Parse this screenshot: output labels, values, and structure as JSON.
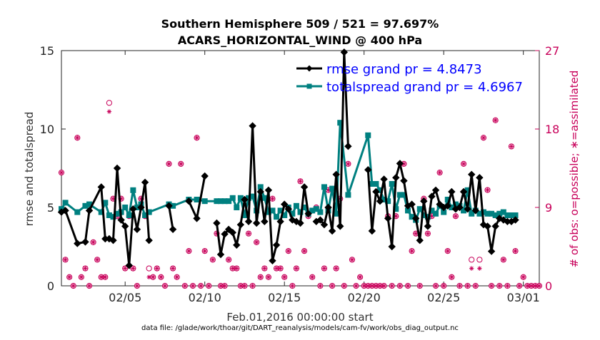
{
  "chart_data": {
    "type": "line",
    "title": [
      "Southern Hemisphere 509 / 521 = 97.697%",
      "ACARS_HORIZONTAL_WIND @ 400 hPa"
    ],
    "xlabel": "Feb.01,2016 00:00:00 start",
    "ylabel_left": "rmse and totalspread",
    "ylabel_right": "# of obs: o=possible; ∗=assimilated",
    "footer": "data file: /glade/work/thoar/git/DART_reanalysis/models/cam-fv/work/obs_diag_output.nc",
    "x_unit": "days since Feb.01,2016 00:00:00",
    "xlim": [
      1,
      31
    ],
    "ylim_left": [
      0,
      15
    ],
    "ylim_right": [
      0,
      27
    ],
    "x_ticks": [
      {
        "value": 5,
        "label": "02/05"
      },
      {
        "value": 10,
        "label": "02/10"
      },
      {
        "value": 15,
        "label": "02/15"
      },
      {
        "value": 20,
        "label": "02/20"
      },
      {
        "value": 25,
        "label": "02/25"
      },
      {
        "value": 30,
        "label": "03/01"
      }
    ],
    "y_ticks_left": [
      0,
      5,
      10,
      15
    ],
    "y_ticks_right": [
      0,
      9,
      18,
      27
    ],
    "legend_position": "top-right",
    "series": [
      {
        "name": "rmse grand pr = 4.8473",
        "color": "#000000",
        "marker": "diamond",
        "axis": "left",
        "x": [
          1.0,
          1.25,
          2.0,
          2.5,
          2.75,
          3.5,
          3.75,
          4.0,
          4.25,
          4.5,
          4.75,
          5.0,
          5.25,
          5.5,
          5.75,
          6.0,
          6.25,
          6.5,
          6.75,
          7.0,
          null,
          7.75,
          8.0,
          null,
          9.0,
          9.5,
          10.0,
          null,
          10.75,
          11.0,
          11.25,
          11.5,
          11.75,
          12.0,
          12.25,
          12.5,
          12.75,
          13.0,
          13.25,
          13.5,
          13.75,
          14.0,
          14.25,
          14.5,
          14.75,
          15.0,
          15.25,
          15.5,
          15.75,
          16.0,
          16.25,
          16.5,
          16.75,
          17.0,
          17.25,
          17.5,
          17.75,
          18.0,
          18.25,
          18.5,
          18.75,
          19.0,
          null,
          20.25,
          20.5,
          20.75,
          21.0,
          21.25,
          21.5,
          21.75,
          22.0,
          22.25,
          22.5,
          22.75,
          23.0,
          23.25,
          23.5,
          23.75,
          24.0,
          24.25,
          24.5,
          24.75,
          25.0,
          25.25,
          25.5,
          25.75,
          26.0,
          26.25,
          26.5,
          26.75,
          27.0,
          27.25,
          27.5,
          27.75,
          28.0,
          28.25,
          28.5,
          28.75,
          29.0,
          29.25,
          29.5
        ],
        "y": [
          4.7,
          4.8,
          2.7,
          2.8,
          4.8,
          6.3,
          3.0,
          3.0,
          2.9,
          7.5,
          4.2,
          3.8,
          1.3,
          4.9,
          3.6,
          5.0,
          6.6,
          2.9,
          null,
          null,
          null,
          5.1,
          3.6,
          null,
          5.4,
          4.3,
          7.0,
          null,
          4.0,
          2.0,
          3.3,
          3.6,
          3.4,
          2.6,
          3.9,
          5.5,
          4.1,
          10.2,
          4.0,
          6.0,
          4.1,
          6.1,
          1.6,
          2.6,
          4.1,
          5.2,
          4.9,
          4.2,
          4.1,
          4.0,
          6.3,
          4.6,
          null,
          4.1,
          4.2,
          3.9,
          5.0,
          3.5,
          7.1,
          3.8,
          14.9,
          8.9,
          null,
          7.4,
          3.5,
          6.0,
          5.4,
          6.8,
          4.3,
          2.5,
          6.9,
          7.8,
          6.7,
          5.1,
          5.2,
          4.3,
          2.9,
          5.4,
          3.8,
          5.7,
          6.1,
          5.2,
          5.0,
          5.1,
          6.0,
          4.9,
          5.0,
          6.0,
          4.9,
          7.1,
          4.8,
          6.9,
          3.9,
          3.8,
          2.2,
          3.8,
          4.3,
          4.2,
          4.1,
          4.1,
          4.2
        ]
      },
      {
        "name": "totalspread grand pr = 4.6967",
        "color": "#008080",
        "marker": "square",
        "axis": "left",
        "x": [
          1.0,
          1.25,
          2.0,
          2.5,
          2.75,
          3.5,
          3.75,
          4.0,
          4.25,
          4.5,
          4.75,
          5.0,
          5.25,
          5.5,
          5.75,
          6.0,
          6.25,
          6.5,
          7.75,
          8.0,
          9.0,
          9.5,
          10.0,
          10.75,
          11.0,
          11.25,
          11.5,
          11.75,
          12.0,
          12.25,
          12.5,
          12.75,
          13.0,
          13.25,
          13.5,
          13.75,
          14.0,
          14.25,
          14.5,
          14.75,
          15.0,
          15.25,
          15.5,
          15.75,
          16.0,
          16.25,
          16.5,
          16.75,
          17.0,
          17.25,
          17.5,
          17.75,
          18.0,
          18.25,
          18.5,
          19.0,
          20.25,
          20.5,
          20.75,
          21.0,
          21.25,
          21.5,
          21.75,
          22.0,
          22.25,
          22.5,
          22.75,
          23.0,
          23.25,
          23.5,
          23.75,
          24.0,
          24.25,
          24.5,
          24.75,
          25.0,
          25.25,
          25.5,
          25.75,
          26.0,
          26.25,
          26.5,
          26.75,
          27.0,
          27.25,
          27.5,
          27.75,
          28.0,
          28.25,
          28.5,
          28.75,
          29.0,
          29.25,
          29.5
        ],
        "y": [
          4.9,
          5.3,
          4.7,
          5.1,
          5.2,
          4.7,
          5.3,
          4.5,
          4.4,
          4.6,
          4.7,
          5.0,
          4.5,
          6.1,
          5.0,
          5.2,
          4.5,
          4.7,
          5.2,
          5.1,
          5.5,
          5.5,
          5.4,
          5.4,
          5.4,
          5.4,
          5.4,
          5.6,
          5.0,
          5.6,
          4.5,
          5.6,
          5.7,
          4.8,
          6.3,
          5.6,
          4.7,
          4.8,
          4.4,
          4.8,
          4.5,
          5.0,
          4.6,
          5.1,
          4.7,
          5.0,
          4.6,
          4.8,
          4.9,
          4.7,
          6.3,
          4.8,
          6.2,
          4.6,
          10.4,
          5.8,
          9.6,
          6.5,
          6.5,
          6.1,
          5.5,
          5.4,
          6.5,
          4.9,
          5.8,
          5.8,
          4.8,
          4.4,
          4.2,
          4.9,
          4.5,
          4.4,
          4.8,
          4.6,
          5.1,
          4.7,
          5.5,
          5.0,
          5.2,
          5.1,
          4.8,
          6.1,
          4.6,
          4.8,
          4.6,
          4.7,
          4.6,
          4.6,
          4.5,
          4.6,
          4.7,
          4.5,
          4.5,
          4.5
        ]
      }
    ],
    "obs_counts": {
      "color": "#c8005a",
      "axis": "right",
      "possible": {
        "marker": "circle",
        "x": [
          1.0,
          1.25,
          1.5,
          1.75,
          2.0,
          2.25,
          2.5,
          2.75,
          3.0,
          3.25,
          3.5,
          3.75,
          4.0,
          4.25,
          4.5,
          4.75,
          5.0,
          5.25,
          5.5,
          5.75,
          6.0,
          6.25,
          6.5,
          6.75,
          7.0,
          7.25,
          7.5,
          7.75,
          8.0,
          8.25,
          8.5,
          8.75,
          9.0,
          9.25,
          9.5,
          9.75,
          10.0,
          10.25,
          10.5,
          10.75,
          11.0,
          11.25,
          11.5,
          11.75,
          12.0,
          12.25,
          12.5,
          12.75,
          13.0,
          13.25,
          13.5,
          13.75,
          14.0,
          14.25,
          14.5,
          14.75,
          15.0,
          15.25,
          15.5,
          15.75,
          16.0,
          16.25,
          16.5,
          16.75,
          17.0,
          17.25,
          17.5,
          17.75,
          18.0,
          18.25,
          18.5,
          18.75,
          19.0,
          19.25,
          19.5,
          19.75,
          20.0,
          20.25,
          20.5,
          20.75,
          21.0,
          21.25,
          21.5,
          21.75,
          22.0,
          22.25,
          22.5,
          22.75,
          23.0,
          23.25,
          23.5,
          23.75,
          24.0,
          24.25,
          24.5,
          24.75,
          25.0,
          25.25,
          25.5,
          25.75,
          26.0,
          26.25,
          26.5,
          26.75,
          27.0,
          27.25,
          27.5,
          27.75,
          28.0,
          28.25,
          28.5,
          28.75,
          29.0,
          29.25,
          29.5,
          29.75,
          30.0,
          30.25,
          30.5,
          30.75,
          31.0
        ],
        "y": [
          13.0,
          3.0,
          1.0,
          0.0,
          17.0,
          1.0,
          2.0,
          0.0,
          5.0,
          3.0,
          1.0,
          1.0,
          21.0,
          10.0,
          8.0,
          10.0,
          2.0,
          8.0,
          2.0,
          0.0,
          10.0,
          8.0,
          2.0,
          1.0,
          2.0,
          1.0,
          0.0,
          14.0,
          2.0,
          1.0,
          14.0,
          0.0,
          4.0,
          0.0,
          17.0,
          0.0,
          4.0,
          0.0,
          3.0,
          6.0,
          0.0,
          0.0,
          3.0,
          2.0,
          2.0,
          0.0,
          0.0,
          6.0,
          0.0,
          5.0,
          1.0,
          2.0,
          1.0,
          10.0,
          2.0,
          2.0,
          1.0,
          4.0,
          0.0,
          2.0,
          12.0,
          4.0,
          8.0,
          1.0,
          9.0,
          0.0,
          2.0,
          11.0,
          0.0,
          2.0,
          10.0,
          0.0,
          14.0,
          3.0,
          0.0,
          1.0,
          0.0,
          0.0,
          0.0,
          0.0,
          0.0,
          0.0,
          8.0,
          0.0,
          8.0,
          0.0,
          14.0,
          0.0,
          4.0,
          6.0,
          0.0,
          10.0,
          6.0,
          8.0,
          0.0,
          13.0,
          0.0,
          4.0,
          1.0,
          8.0,
          0.0,
          14.0,
          0.0,
          3.0,
          0.0,
          3.0,
          17.0,
          11.0,
          0.0,
          19.0,
          0.0,
          3.0,
          0.0,
          16.0,
          4.0,
          0.0,
          1.0,
          0.0,
          0.0,
          0.0,
          0.0
        ]
      },
      "assimilated": {
        "marker": "asterisk",
        "x": [
          1.0,
          1.25,
          1.5,
          1.75,
          2.0,
          2.25,
          2.5,
          2.75,
          3.0,
          3.25,
          3.5,
          3.75,
          4.0,
          4.25,
          4.5,
          4.75,
          5.0,
          5.25,
          5.5,
          5.75,
          6.0,
          6.25,
          6.5,
          6.75,
          7.0,
          7.25,
          7.5,
          7.75,
          8.0,
          8.25,
          8.5,
          8.75,
          9.0,
          9.25,
          9.5,
          9.75,
          10.0,
          10.25,
          10.5,
          10.75,
          11.0,
          11.25,
          11.5,
          11.75,
          12.0,
          12.25,
          12.5,
          12.75,
          13.0,
          13.25,
          13.5,
          13.75,
          14.0,
          14.25,
          14.5,
          14.75,
          15.0,
          15.25,
          15.5,
          15.75,
          16.0,
          16.25,
          16.5,
          16.75,
          17.0,
          17.25,
          17.5,
          17.75,
          18.0,
          18.25,
          18.5,
          18.75,
          19.0,
          19.25,
          19.5,
          19.75,
          20.0,
          20.25,
          20.5,
          20.75,
          21.0,
          21.25,
          21.5,
          21.75,
          22.0,
          22.25,
          22.5,
          22.75,
          23.0,
          23.25,
          23.5,
          23.75,
          24.0,
          24.25,
          24.5,
          24.75,
          25.0,
          25.25,
          25.5,
          25.75,
          26.0,
          26.25,
          26.5,
          26.75,
          27.0,
          27.25,
          27.5,
          27.75,
          28.0,
          28.25,
          28.5,
          28.75,
          29.0,
          29.25,
          29.5,
          29.75,
          30.0,
          30.25,
          30.5,
          30.75,
          31.0
        ],
        "y": [
          13.0,
          3.0,
          1.0,
          0.0,
          17.0,
          1.0,
          2.0,
          0.0,
          5.0,
          3.0,
          1.0,
          1.0,
          20.0,
          10.0,
          8.0,
          10.0,
          2.0,
          8.0,
          2.0,
          0.0,
          10.0,
          8.0,
          1.0,
          1.0,
          2.0,
          1.0,
          0.0,
          14.0,
          2.0,
          1.0,
          14.0,
          0.0,
          4.0,
          0.0,
          17.0,
          0.0,
          4.0,
          0.0,
          3.0,
          6.0,
          0.0,
          0.0,
          3.0,
          2.0,
          2.0,
          0.0,
          0.0,
          6.0,
          0.0,
          5.0,
          1.0,
          2.0,
          1.0,
          10.0,
          2.0,
          2.0,
          1.0,
          4.0,
          0.0,
          2.0,
          12.0,
          4.0,
          8.0,
          1.0,
          9.0,
          0.0,
          2.0,
          11.0,
          0.0,
          2.0,
          10.0,
          0.0,
          14.0,
          3.0,
          0.0,
          1.0,
          0.0,
          0.0,
          0.0,
          0.0,
          0.0,
          0.0,
          8.0,
          0.0,
          8.0,
          0.0,
          14.0,
          0.0,
          4.0,
          6.0,
          0.0,
          10.0,
          6.0,
          8.0,
          0.0,
          13.0,
          0.0,
          4.0,
          1.0,
          8.0,
          0.0,
          14.0,
          0.0,
          2.0,
          0.0,
          2.0,
          17.0,
          11.0,
          0.0,
          19.0,
          0.0,
          3.0,
          0.0,
          16.0,
          4.0,
          0.0,
          1.0,
          0.0,
          0.0,
          0.0,
          0.0
        ]
      }
    }
  }
}
